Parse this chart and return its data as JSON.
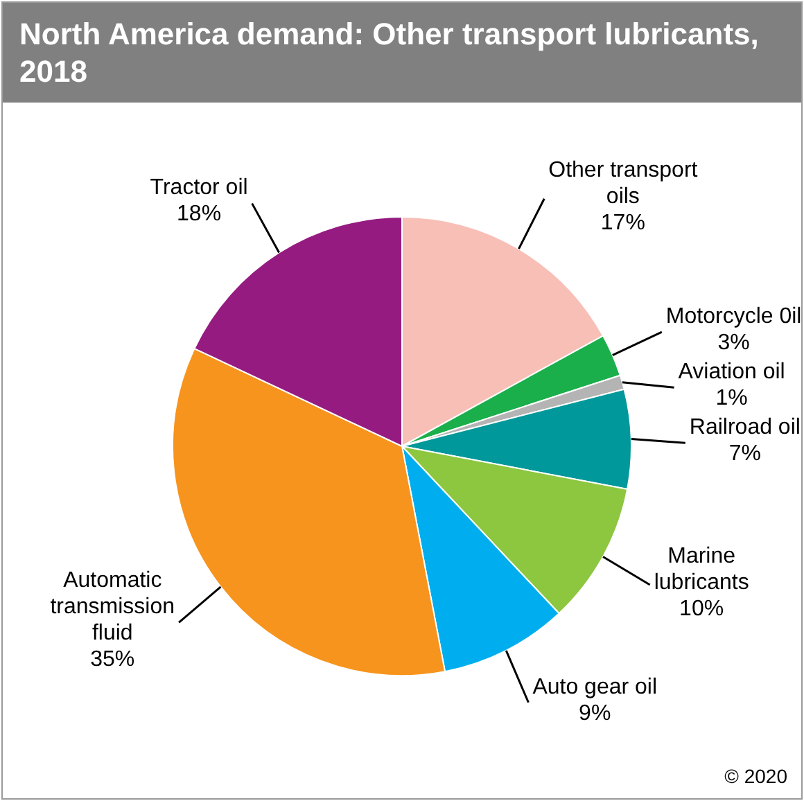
{
  "chart_data": {
    "type": "pie",
    "title": "North America demand: Other transport lubricants, 2018",
    "categories": [
      "Other transport oils",
      "Motorcycle 0il",
      "Aviation oil",
      "Railroad oil",
      "Marine lubricants",
      "Auto gear oil",
      "Automatic transmission fluid",
      "Tractor oil"
    ],
    "values": [
      17,
      3,
      1,
      7,
      10,
      9,
      35,
      18
    ],
    "colors": [
      "#f8bfb6",
      "#1aaf4b",
      "#b4b4b4",
      "#00989a",
      "#8dc63f",
      "#00aeef",
      "#f7941d",
      "#951b81"
    ],
    "value_labels": [
      "17%",
      "3%",
      "1%",
      "7%",
      "10%",
      "9%",
      "35%",
      "18%"
    ],
    "legend": false,
    "annotations": [
      "© 2020"
    ]
  }
}
